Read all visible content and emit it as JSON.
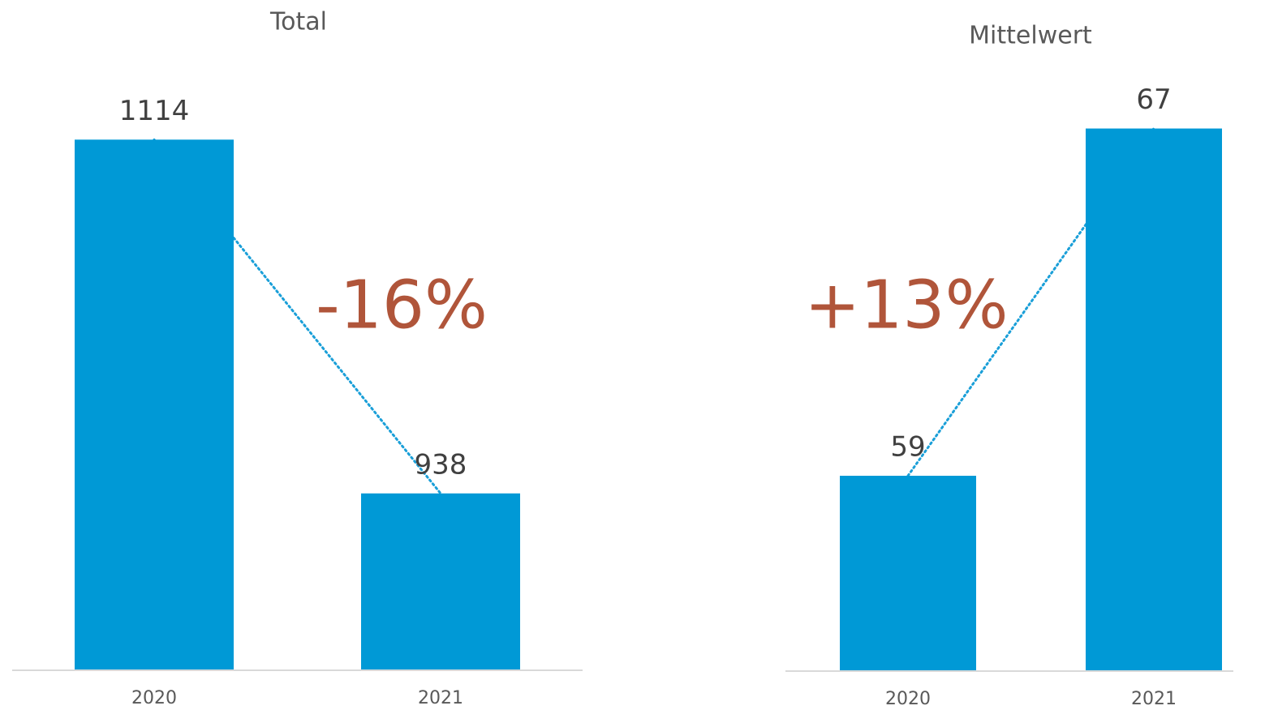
{
  "chart_data": [
    {
      "type": "bar",
      "title": "Total",
      "categories": [
        "2020",
        "2021"
      ],
      "values": [
        1114,
        938
      ],
      "color": "#0099d6",
      "ylim": [
        850,
        1150
      ],
      "annotation": "-16%"
    },
    {
      "type": "bar",
      "title": "Mittelwert",
      "categories": [
        "2020",
        "2021"
      ],
      "values": [
        59,
        67
      ],
      "color": "#0099d6",
      "ylim": [
        54.5,
        68
      ],
      "annotation": "+13%"
    }
  ]
}
